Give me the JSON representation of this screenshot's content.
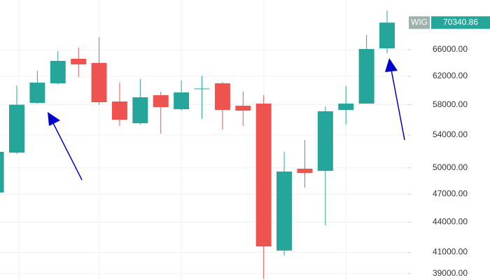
{
  "chart_data": {
    "type": "candlestick",
    "symbol": "WIG",
    "last_price": 70340.86,
    "log_scale": true,
    "grid": true,
    "up_color": "#26a69a",
    "down_color": "#ef5350",
    "open": [
      47190,
      51820,
      58250,
      60990,
      64610,
      63980,
      58440,
      55530,
      59310,
      57390,
      60150,
      60990,
      57860,
      58150,
      41170,
      49900,
      49650,
      57290,
      58150,
      66220
    ],
    "high": [
      52500,
      60690,
      62820,
      65780,
      66330,
      67980,
      61090,
      61600,
      59800,
      61390,
      62100,
      61180,
      59800,
      59310,
      51920,
      53380,
      57760,
      60590,
      68320,
      72370
    ],
    "low": [
      46800,
      51660,
      58150,
      60830,
      61900,
      58000,
      55170,
      55360,
      54180,
      57200,
      56080,
      54720,
      55170,
      38540,
      40700,
      47730,
      43680,
      55350,
      58150,
      65460
    ],
    "close": [
      51920,
      58000,
      61090,
      64290,
      63760,
      58340,
      55990,
      59020,
      57670,
      59700,
      60250,
      57290,
      57200,
      41570,
      49570,
      49410,
      57110,
      58150,
      66110,
      70340.86
    ],
    "ylim": [
      38420,
      74180
    ],
    "yticks": [
      {
        "value": 39000,
        "label": "39000.00"
      },
      {
        "value": 41000,
        "label": "41000.00"
      },
      {
        "value": 44000,
        "label": "44000.00"
      },
      {
        "value": 47000,
        "label": "47000.00"
      },
      {
        "value": 50000,
        "label": "50000.00"
      },
      {
        "value": 54000,
        "label": "54000.00"
      },
      {
        "value": 58000,
        "label": "58000.00"
      },
      {
        "value": 62000,
        "label": "62000.00"
      },
      {
        "value": 66000,
        "label": "66000.00"
      }
    ]
  }
}
